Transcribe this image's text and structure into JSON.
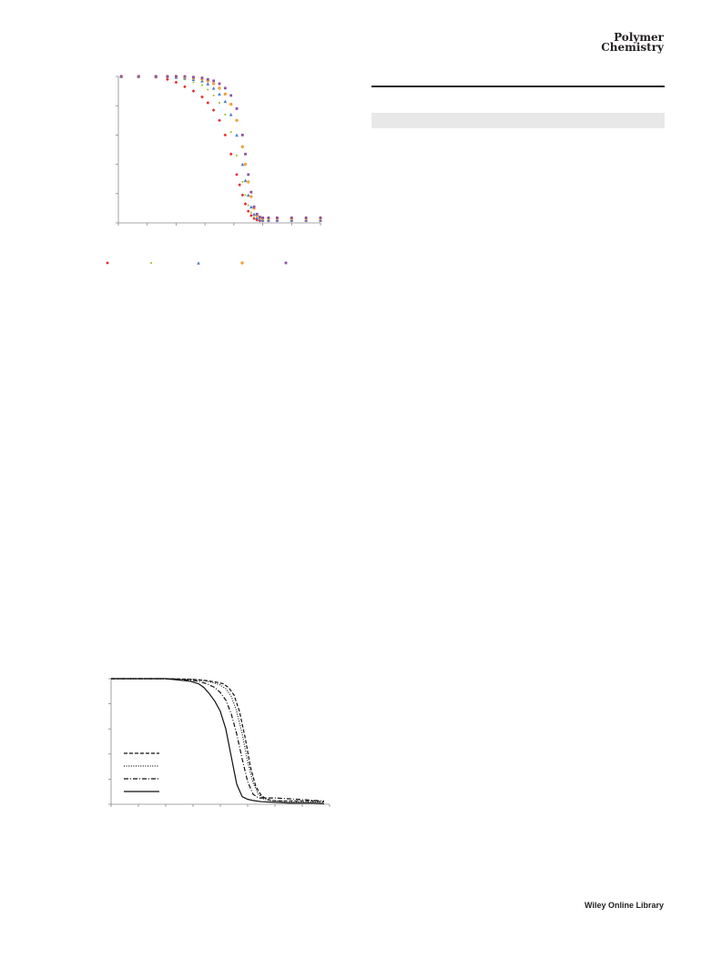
{
  "journal": {
    "line1": "Polymer",
    "line2": "Chemistry"
  },
  "publisher": "Wiley Online Library",
  "chart_data": [
    {
      "type": "scatter",
      "title": "",
      "xlabel": "",
      "ylabel": "",
      "legend_position": "bottom",
      "xlim": [
        0,
        700
      ],
      "ylim": [
        0,
        100
      ],
      "x_ticks": [
        0,
        100,
        200,
        300,
        400,
        500,
        600,
        700
      ],
      "y_ticks": [
        0,
        20,
        40,
        60,
        80,
        100
      ],
      "grid": false,
      "series": [
        {
          "marker": "diamond",
          "color": "#e8252b",
          "x": [
            10,
            70,
            130,
            170,
            200,
            230,
            260,
            290,
            310,
            330,
            350,
            370,
            390,
            410,
            420,
            430,
            440,
            450,
            460,
            470,
            480,
            490,
            500,
            520,
            550,
            600,
            650,
            700
          ],
          "y": [
            100,
            100,
            99.5,
            98,
            96,
            93,
            90,
            86,
            82,
            77,
            70,
            60,
            47,
            33,
            26,
            19,
            13,
            8,
            5,
            3,
            2,
            1.5,
            1.5,
            1.5,
            1.5,
            1.5,
            1.5,
            1.5
          ]
        },
        {
          "marker": "dot",
          "color": "#a4c639",
          "x": [
            10,
            70,
            130,
            170,
            200,
            230,
            260,
            290,
            310,
            330,
            350,
            370,
            390,
            410,
            430,
            440,
            450,
            460,
            470,
            480,
            490,
            500,
            520,
            550,
            600,
            650,
            700
          ],
          "y": [
            100,
            100,
            100,
            99.5,
            99,
            98,
            96,
            94,
            91,
            87,
            82,
            74,
            62,
            46,
            28,
            19,
            12,
            7,
            4,
            3,
            2.5,
            2.5,
            2.5,
            2.5,
            2.5,
            2.5,
            2.5
          ]
        },
        {
          "marker": "triangle",
          "color": "#4a7cc9",
          "x": [
            10,
            70,
            130,
            170,
            200,
            230,
            260,
            290,
            310,
            330,
            350,
            370,
            390,
            410,
            430,
            440,
            450,
            460,
            470,
            480,
            490,
            500,
            520,
            550,
            600,
            650,
            700
          ],
          "y": [
            100,
            100,
            100,
            100,
            99.5,
            99,
            98,
            97,
            95,
            92,
            88,
            83,
            74,
            60,
            40,
            29,
            19,
            11,
            6,
            3.5,
            2.5,
            2,
            2,
            2,
            2,
            2,
            2
          ]
        },
        {
          "marker": "circle",
          "color": "#f4a23a",
          "x": [
            10,
            70,
            130,
            170,
            200,
            230,
            260,
            290,
            310,
            330,
            350,
            370,
            390,
            410,
            430,
            440,
            450,
            460,
            470,
            480,
            490,
            500,
            520,
            550,
            600,
            650,
            700
          ],
          "y": [
            100,
            100,
            100,
            100,
            100,
            99.5,
            99,
            98,
            97,
            95,
            92,
            88,
            81,
            70,
            52,
            40,
            28,
            18,
            10,
            5,
            3.5,
            3,
            3,
            3,
            3,
            3,
            3
          ]
        },
        {
          "marker": "square",
          "color": "#8e53a3",
          "x": [
            10,
            70,
            130,
            170,
            200,
            230,
            260,
            290,
            310,
            330,
            350,
            370,
            390,
            410,
            430,
            440,
            450,
            460,
            470,
            480,
            490,
            500,
            520,
            550,
            600,
            650,
            700
          ],
          "y": [
            100,
            100,
            100,
            100,
            100,
            100,
            99.5,
            99,
            98,
            97,
            95,
            92,
            87,
            78,
            60,
            47,
            33,
            21,
            11,
            6,
            4,
            3.5,
            3.5,
            3.5,
            3.5,
            3.5,
            3.5
          ]
        }
      ]
    },
    {
      "type": "line",
      "title": "",
      "xlabel": "",
      "ylabel": "",
      "legend_position": "left",
      "xlim": [
        0,
        800
      ],
      "ylim": [
        0,
        100
      ],
      "x_ticks": [
        0,
        100,
        200,
        300,
        400,
        500,
        600,
        700,
        800
      ],
      "y_ticks": [
        0,
        20,
        40,
        60,
        80,
        100
      ],
      "grid": false,
      "series": [
        {
          "style": "dashed",
          "x": [
            0,
            200,
            300,
            350,
            380,
            410,
            430,
            450,
            470,
            490,
            510,
            530,
            550,
            570,
            590,
            620,
            660,
            700,
            740,
            780
          ],
          "y": [
            100,
            100,
            99.5,
            98.5,
            97.5,
            96,
            93,
            87,
            74,
            54,
            30,
            14,
            7,
            4,
            3,
            2.5,
            2.5,
            2.5,
            2.5,
            2
          ]
        },
        {
          "style": "dotted",
          "x": [
            0,
            200,
            300,
            340,
            370,
            400,
            420,
            440,
            460,
            480,
            500,
            520,
            540,
            560,
            580,
            620,
            660,
            700,
            740,
            780
          ],
          "y": [
            100,
            100,
            99.5,
            98.5,
            97,
            95,
            92,
            86,
            74,
            56,
            34,
            17,
            8,
            4,
            3,
            2.5,
            2,
            2,
            2,
            1.5
          ]
        },
        {
          "style": "dash-dot",
          "x": [
            0,
            200,
            280,
            320,
            350,
            380,
            400,
            420,
            440,
            460,
            480,
            500,
            520,
            540,
            560,
            600,
            640,
            680,
            720,
            780
          ],
          "y": [
            100,
            100,
            99,
            98,
            96,
            93,
            89,
            83,
            72,
            56,
            36,
            18,
            8,
            5,
            5,
            5,
            4.5,
            4,
            3.5,
            2.5
          ]
        },
        {
          "style": "solid",
          "x": [
            0,
            200,
            290,
            320,
            340,
            360,
            380,
            400,
            420,
            440,
            460,
            480,
            500,
            520,
            550,
            600,
            650,
            700,
            740,
            780
          ],
          "y": [
            100,
            100,
            98,
            96,
            93,
            88,
            82,
            74,
            60,
            38,
            16,
            6,
            4,
            3,
            2,
            1.5,
            1,
            1,
            1,
            0.5
          ]
        }
      ]
    }
  ]
}
